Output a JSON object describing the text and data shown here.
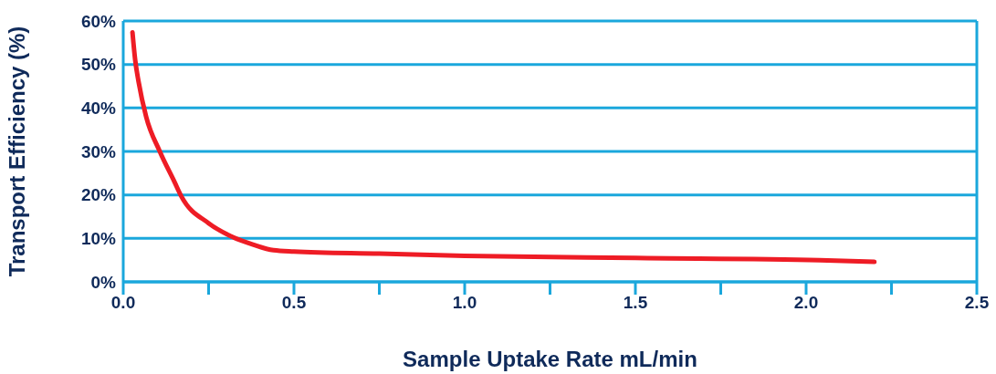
{
  "chart_data": {
    "type": "line",
    "xlabel": "Sample Uptake Rate mL/min",
    "ylabel": "Transport Efficiency (%)",
    "x": [
      0.027,
      0.035,
      0.045,
      0.067,
      0.107,
      0.15,
      0.17,
      0.25,
      0.31,
      0.38,
      0.44,
      0.5,
      0.75,
      1.0,
      1.5,
      2.04,
      2.2
    ],
    "series": [
      {
        "color": "#ee1c25",
        "values": [
          57.4,
          51,
          46,
          38,
          30,
          23,
          19.7,
          13.5,
          10.7,
          8.6,
          7.3,
          7,
          6.5,
          6,
          5.5,
          5,
          4.6
        ]
      }
    ],
    "xlim": [
      0,
      2.5
    ],
    "xticks": [
      {
        "value": 0,
        "label": "0.0"
      },
      {
        "value": 0.25,
        "label": null
      },
      0.5,
      {
        "value": 0.75,
        "label": null
      },
      {
        "value": 1,
        "label": "1.0"
      },
      {
        "value": 1.25,
        "label": null
      },
      1.5,
      {
        "value": 1.75,
        "label": null
      },
      {
        "value": 2,
        "label": "2.0"
      },
      {
        "value": 2.25,
        "label": null
      },
      2.5
    ],
    "ylim": [
      0,
      60
    ],
    "yticks": [
      {
        "value": 0,
        "label": "0%"
      },
      {
        "value": 10,
        "label": "10%"
      },
      {
        "value": 20,
        "label": "20%"
      },
      {
        "value": 30,
        "label": "30%"
      },
      {
        "value": 40,
        "label": "40%"
      },
      {
        "value": 50,
        "label": "50%"
      },
      {
        "value": 60,
        "label": "60%"
      }
    ],
    "grid": "y",
    "marker": "none",
    "line_style": "solid"
  }
}
